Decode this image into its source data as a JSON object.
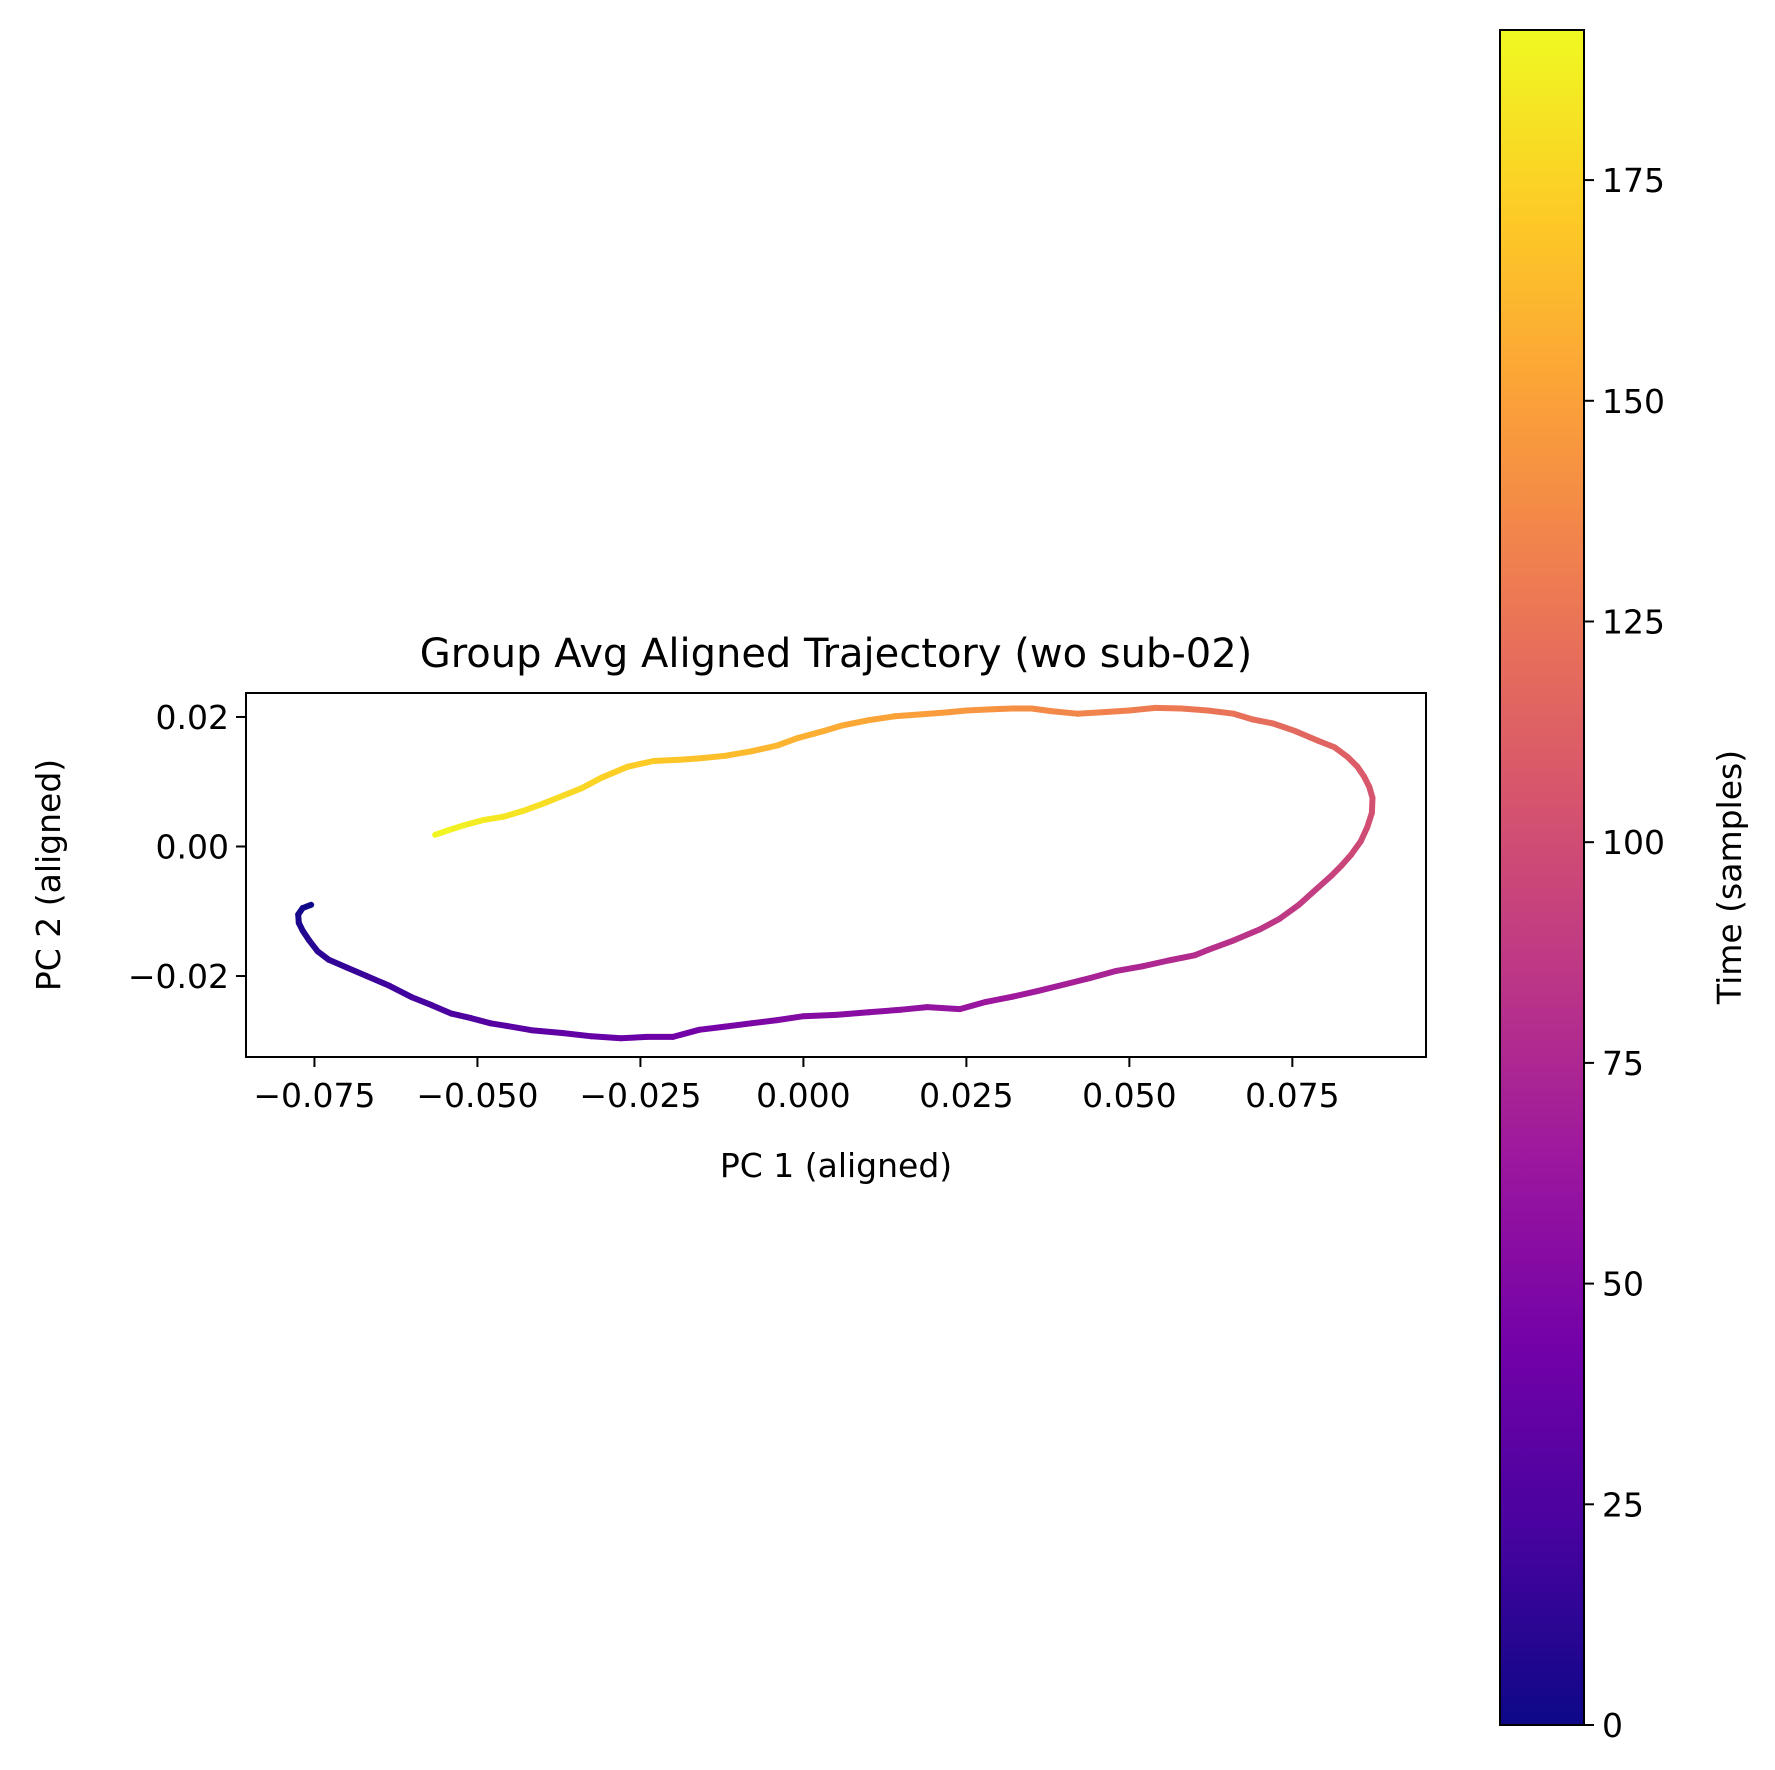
{
  "chart_data": {
    "type": "line",
    "title": "Group Avg Aligned Trajectory (wo sub-02)",
    "xlabel": "PC 1 (aligned)",
    "ylabel": "PC 2 (aligned)",
    "xlim": [
      -0.0855,
      0.0955
    ],
    "ylim": [
      -0.0325,
      0.0237
    ],
    "xticks": [
      -0.075,
      -0.05,
      -0.025,
      0.0,
      0.025,
      0.05,
      0.075
    ],
    "xtick_labels": [
      "−0.075",
      "−0.050",
      "−0.025",
      "0.000",
      "0.025",
      "0.050",
      "0.075"
    ],
    "yticks": [
      -0.02,
      0.0,
      0.02
    ],
    "ytick_labels": [
      "−0.02",
      "0.00",
      "0.02"
    ],
    "grid": false,
    "colormap": "plasma",
    "colormap_stops": [
      "#0d0887",
      "#46039f",
      "#7201a8",
      "#9c179e",
      "#bd3786",
      "#d8576b",
      "#ed7953",
      "#fb9f3a",
      "#fdca26",
      "#f0f921"
    ],
    "colorbar": {
      "label": "Time (samples)",
      "range": [
        0,
        192
      ],
      "ticks": [
        0,
        25,
        50,
        75,
        100,
        125,
        150,
        175
      ],
      "tick_labels": [
        "0",
        "25",
        "50",
        "75",
        "100",
        "125",
        "150",
        "175"
      ]
    },
    "series": [
      {
        "x": [
          -0.0755,
          -0.0768,
          -0.0775,
          -0.0774,
          -0.0768,
          -0.0758,
          -0.0745,
          -0.0728,
          -0.07,
          -0.067,
          -0.0635,
          -0.06,
          -0.057,
          -0.054,
          -0.051,
          -0.048,
          -0.0455,
          -0.0415,
          -0.037,
          -0.0325,
          -0.028,
          -0.024,
          -0.02,
          -0.016,
          -0.012,
          -0.008,
          -0.004,
          0.0,
          0.005,
          0.01,
          0.015,
          0.019,
          0.024,
          0.028,
          0.032,
          0.036,
          0.04,
          0.044,
          0.048,
          0.052,
          0.056,
          0.06,
          0.062,
          0.066,
          0.07,
          0.073,
          0.076,
          0.079,
          0.081,
          0.0825,
          0.084,
          0.0855,
          0.0865,
          0.0872,
          0.0873,
          0.0868,
          0.086,
          0.085,
          0.0835,
          0.0815,
          0.079,
          0.0755,
          0.072,
          0.069,
          0.066,
          0.062,
          0.058,
          0.054,
          0.05,
          0.0455,
          0.042,
          0.038,
          0.035,
          0.032,
          0.029,
          0.025,
          0.022,
          0.018,
          0.014,
          0.01,
          0.006,
          0.003,
          -0.001,
          -0.004,
          -0.008,
          -0.012,
          -0.016,
          -0.019,
          -0.023,
          -0.027,
          -0.031,
          -0.034,
          -0.037,
          -0.04,
          -0.043,
          -0.046,
          -0.049,
          -0.052,
          -0.0545,
          -0.0565
        ],
        "y": [
          -0.009,
          -0.0095,
          -0.0105,
          -0.0118,
          -0.013,
          -0.0145,
          -0.0162,
          -0.0175,
          -0.0187,
          -0.02,
          -0.0215,
          -0.0233,
          -0.0245,
          -0.0258,
          -0.0265,
          -0.0273,
          -0.0277,
          -0.0284,
          -0.0288,
          -0.0293,
          -0.0296,
          -0.0294,
          -0.0294,
          -0.0283,
          -0.0278,
          -0.0273,
          -0.0268,
          -0.0262,
          -0.026,
          -0.0256,
          -0.0252,
          -0.0248,
          -0.0251,
          -0.024,
          -0.0232,
          -0.0223,
          -0.0213,
          -0.0203,
          -0.0192,
          -0.0185,
          -0.0176,
          -0.0168,
          -0.016,
          -0.0145,
          -0.0128,
          -0.0112,
          -0.009,
          -0.0063,
          -0.0045,
          -0.003,
          -0.0013,
          0.0008,
          0.003,
          0.0052,
          0.0075,
          0.0092,
          0.0108,
          0.0123,
          0.0138,
          0.0153,
          0.0163,
          0.0178,
          0.019,
          0.0196,
          0.0205,
          0.021,
          0.0213,
          0.0214,
          0.021,
          0.0207,
          0.0205,
          0.0209,
          0.0213,
          0.0213,
          0.0212,
          0.021,
          0.0207,
          0.0204,
          0.0201,
          0.0195,
          0.0187,
          0.0178,
          0.0167,
          0.0156,
          0.0147,
          0.014,
          0.0136,
          0.0134,
          0.0132,
          0.0123,
          0.0106,
          0.009,
          0.0078,
          0.0066,
          0.0055,
          0.0046,
          0.0041,
          0.0033,
          0.0025,
          0.0018
        ]
      }
    ]
  }
}
